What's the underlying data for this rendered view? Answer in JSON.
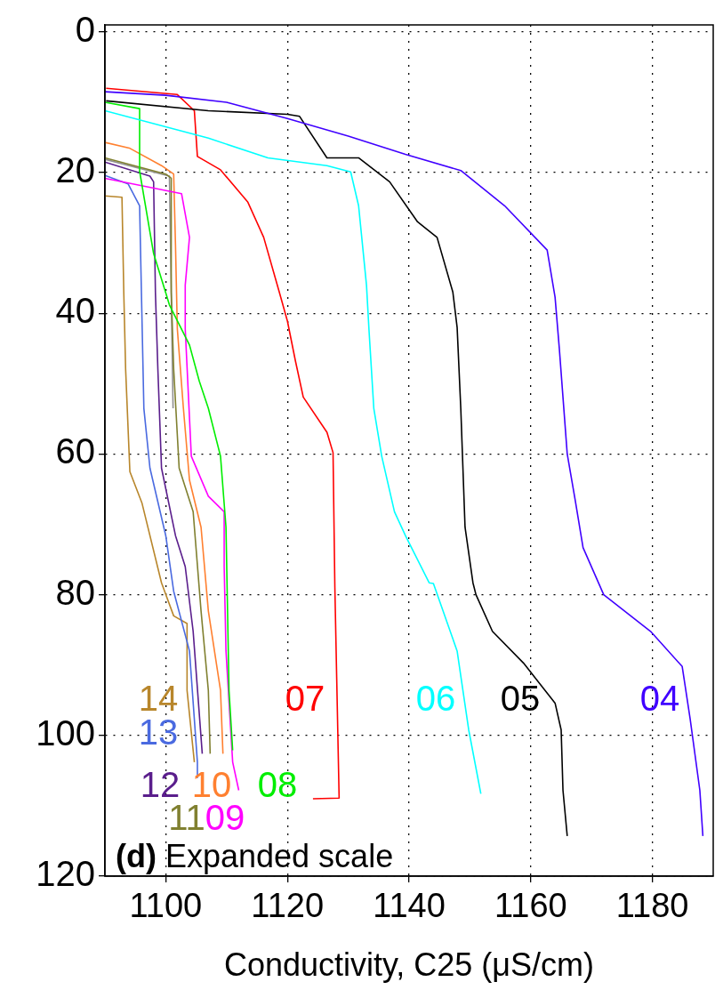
{
  "chart_data": {
    "type": "line",
    "xlabel": "Conductivity, C25 (μS/cm)",
    "xlim": [
      1090,
      1190
    ],
    "xticks": [
      1100,
      1120,
      1140,
      1160,
      1180
    ],
    "ylim": [
      120,
      -1
    ],
    "yticks": [
      0,
      20,
      40,
      60,
      80,
      100,
      120
    ],
    "grid": true,
    "legend": false,
    "marker": "none",
    "annotations": [
      "(d) Expanded scale"
    ],
    "series": [
      {
        "name": "04",
        "color": "#4000ff",
        "x": [
          1090,
          1100,
          1110,
          1120,
          1130,
          1139.4,
          1148.5,
          1155.7,
          1162.7,
          1164,
          1164.7,
          1166,
          1167.3,
          1168.6,
          1172,
          1179.7,
          1184.9,
          1186.2,
          1187.8,
          1188.3
        ],
        "values": [
          8.5,
          9,
          10,
          12.3,
          14.8,
          17.4,
          19.7,
          24.7,
          31,
          37.7,
          45,
          60,
          66.5,
          73.3,
          80,
          85.2,
          90.2,
          97.6,
          107.8,
          114.3
        ]
      },
      {
        "name": "05",
        "color": "#000000",
        "x": [
          1090.2,
          1107,
          1120,
          1122,
          1126.5,
          1131.7,
          1136.8,
          1141.4,
          1144.6,
          1147.2,
          1147.9,
          1148.5,
          1149.2,
          1150.5,
          1151,
          1153.7,
          1158.8,
          1164,
          1165,
          1165.3,
          1166
        ],
        "values": [
          9.8,
          11.2,
          11.7,
          12,
          17.9,
          17.9,
          21.3,
          27,
          29.2,
          37,
          42,
          53.5,
          70.4,
          78.3,
          80,
          85.2,
          89.7,
          95.4,
          99.2,
          107.8,
          114.3
        ]
      },
      {
        "name": "06",
        "color": "#00ffff",
        "x": [
          1090,
          1107,
          1116.8,
          1126.5,
          1130.4,
          1131.7,
          1133,
          1133.4,
          1134.2,
          1135.5,
          1137.6,
          1139.4,
          1143.3,
          1144,
          1147.9,
          1149.8,
          1151.8
        ],
        "values": [
          11.2,
          15.1,
          17.9,
          19,
          19.9,
          24.7,
          36,
          42.2,
          53.5,
          60.3,
          68.2,
          71.6,
          78.3,
          78.4,
          88,
          99.2,
          108.3
        ]
      },
      {
        "name": "07",
        "color": "#ff0000",
        "x": [
          1090.2,
          1101.9,
          1104.7,
          1105.2,
          1109,
          1113.5,
          1116.1,
          1118.7,
          1120,
          1121.3,
          1122.6,
          1126.5,
          1127.5,
          1127.8,
          1128.5,
          1124.2
        ],
        "values": [
          8,
          8.9,
          11.2,
          17.7,
          19.6,
          24.2,
          29.2,
          37.1,
          41.1,
          46.7,
          51.9,
          56.9,
          59.8,
          79,
          108.9,
          109
        ]
      },
      {
        "name": "08",
        "color": "#00ee00",
        "x": [
          1090,
          1095.7,
          1095.7,
          1098,
          1100,
          1100.6,
          1103.9,
          1105.5,
          1107,
          1109,
          1109.9,
          1110.4,
          1111
        ],
        "values": [
          10,
          10.9,
          19.8,
          31.5,
          37.1,
          38.8,
          44.5,
          49.6,
          53.5,
          60.3,
          70.4,
          93.6,
          102.1
        ]
      },
      {
        "name": "09",
        "color": "#ff00ff",
        "x": [
          1090,
          1102.6,
          1103.9,
          1103.2,
          1103.2,
          1104.2,
          1107,
          1109.6,
          1109.6,
          1109.9,
          1111,
          1112
        ],
        "values": [
          20.8,
          23,
          29.2,
          36,
          42.2,
          60.3,
          66,
          68.2,
          76,
          88,
          103.8,
          107.8
        ]
      },
      {
        "name": "10",
        "color": "#ff8030",
        "x": [
          1090,
          1094,
          1099.3,
          1101.3,
          1101.6,
          1101.9,
          1102.9,
          1103.9,
          1105.8,
          1107,
          1109,
          1109.4
        ],
        "values": [
          15.7,
          16.5,
          19,
          20.2,
          30.3,
          42.2,
          53.5,
          63.7,
          70.4,
          82.3,
          93.6,
          102.6
        ]
      },
      {
        "name": "11",
        "color": "#808030",
        "x": [
          1090,
          1100,
          1100.9,
          1100.9,
          1101.3,
          1102.2,
          1104.5,
          1105.8,
          1107,
          1107.3
        ],
        "values": [
          17.9,
          20.2,
          20.8,
          37,
          47.9,
          62,
          68.2,
          82.3,
          93.6,
          102.6
        ]
      },
      {
        "name": "12",
        "color": "#5a1e8c",
        "x": [
          1090,
          1097.4,
          1098,
          1098.3,
          1098.7,
          1099.3,
          1101.6,
          1103.2,
          1104.5,
          1106
        ],
        "values": [
          18.5,
          20.5,
          21.3,
          37.1,
          47.9,
          62,
          71.6,
          76,
          85.2,
          102.6
        ]
      },
      {
        "name": "13",
        "color": "#4a6ae0",
        "x": [
          1090,
          1093.8,
          1095.7,
          1096,
          1096.4,
          1097.4,
          1100,
          1101.3,
          1103.9,
          1105.2,
          1105.2
        ],
        "values": [
          20.4,
          21.6,
          24.7,
          37.1,
          53.5,
          62,
          71.6,
          79.5,
          88,
          103.8,
          106
        ]
      },
      {
        "name": "14",
        "color": "#b8862b",
        "x": [
          1090,
          1092.8,
          1093.1,
          1093.4,
          1094.1,
          1096.1,
          1099.3,
          1101.3,
          1103.5,
          1103.5,
          1104.7
        ],
        "values": [
          23.3,
          23.5,
          37.1,
          47.9,
          62.5,
          67,
          78.3,
          83,
          84.1,
          93.6,
          103.8
        ]
      },
      {
        "color": "#909090",
        "x": [
          1090,
          1100.6,
          1101.2
        ],
        "values": [
          18.1,
          20.5,
          53.5
        ]
      }
    ]
  }
}
